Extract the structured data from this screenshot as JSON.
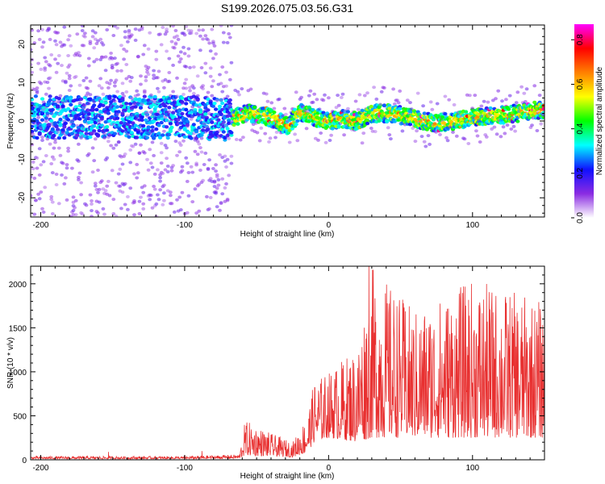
{
  "title": "S199.2026.075.03.56.G31",
  "colors": {
    "line": "#e83030",
    "axis": "#000000",
    "spectrogram_bg": "#ffffff"
  },
  "chart_data": [
    {
      "type": "heatmap",
      "xlabel": "Height of straight line (km)",
      "ylabel": "Frequency (Hz)",
      "xlim": [
        -207,
        150
      ],
      "ylim": [
        -25,
        25
      ],
      "xticks": [
        -200,
        -100,
        0,
        100
      ],
      "xtick_labels": [
        "-200",
        "-100",
        "0",
        "100"
      ],
      "yticks": [
        -20,
        -10,
        0,
        10,
        20
      ],
      "ytick_labels": [
        "-20",
        "-10",
        "0",
        "10",
        "20"
      ],
      "colorbar": {
        "label": "Normalized spectral amplitude",
        "range": [
          0,
          0.87
        ],
        "ticks": [
          0,
          0.2,
          0.4,
          0.6,
          0.8
        ],
        "tick_labels": [
          "0.0",
          "0.2",
          "0.4",
          "0.6",
          "0.8"
        ],
        "stops": [
          "#ffffff",
          "#8a2be2",
          "#1010ff",
          "#00ffff",
          "#00ff00",
          "#ffff00",
          "#ff8000",
          "#ff0000",
          "#ff00ff"
        ]
      },
      "trend": [
        {
          "x": -207,
          "f": 1.0
        },
        {
          "x": -150,
          "f": 1.0
        },
        {
          "x": -100,
          "f": 1.0
        },
        {
          "x": -70,
          "f": 0.5
        },
        {
          "x": -55,
          "f": 2.0
        },
        {
          "x": -45,
          "f": 1.5
        },
        {
          "x": -35,
          "f": 0.0
        },
        {
          "x": -28,
          "f": -1.5
        },
        {
          "x": -20,
          "f": 2.5
        },
        {
          "x": -10,
          "f": 1.0
        },
        {
          "x": 0,
          "f": 0.0
        },
        {
          "x": 10,
          "f": 0.5
        },
        {
          "x": 20,
          "f": 0.0
        },
        {
          "x": 30,
          "f": 2.0
        },
        {
          "x": 45,
          "f": 2.0
        },
        {
          "x": 60,
          "f": 0.5
        },
        {
          "x": 75,
          "f": -0.5
        },
        {
          "x": 90,
          "f": 0.0
        },
        {
          "x": 100,
          "f": 1.0
        },
        {
          "x": 120,
          "f": 1.5
        },
        {
          "x": 150,
          "f": 3.0
        }
      ],
      "noise_cutoff_x": -67
    },
    {
      "type": "line",
      "xlabel": "Height of straight line (km)",
      "ylabel": "SNR (10 * v/v)",
      "xlim": [
        -207,
        150
      ],
      "ylim": [
        0,
        2200
      ],
      "xticks": [
        -200,
        -100,
        0,
        100
      ],
      "xtick_labels": [
        "-200",
        "-100",
        "0",
        "100"
      ],
      "yticks": [
        0,
        500,
        1000,
        1500,
        2000
      ],
      "ytick_labels": [
        "0",
        "500",
        "1000",
        "1500",
        "2000"
      ],
      "envelope": [
        {
          "x": -207,
          "base": 10,
          "peak": 40
        },
        {
          "x": -100,
          "base": 10,
          "peak": 40
        },
        {
          "x": -62,
          "base": 15,
          "peak": 60
        },
        {
          "x": -58,
          "base": 50,
          "peak": 450
        },
        {
          "x": -40,
          "base": 40,
          "peak": 300
        },
        {
          "x": -25,
          "base": 30,
          "peak": 200
        },
        {
          "x": -15,
          "base": 80,
          "peak": 500
        },
        {
          "x": -10,
          "base": 200,
          "peak": 900
        },
        {
          "x": 0,
          "base": 250,
          "peak": 1000
        },
        {
          "x": 20,
          "base": 200,
          "peak": 1300
        },
        {
          "x": 30,
          "base": 250,
          "peak": 2200
        },
        {
          "x": 60,
          "base": 250,
          "peak": 1700
        },
        {
          "x": 100,
          "base": 250,
          "peak": 2050
        },
        {
          "x": 150,
          "base": 250,
          "peak": 1800
        }
      ],
      "spikes": [
        {
          "x": -153,
          "y": 90
        },
        {
          "x": -88,
          "y": 100
        },
        {
          "x": 28,
          "y": 2200
        },
        {
          "x": 150,
          "y": 1800
        }
      ]
    }
  ]
}
